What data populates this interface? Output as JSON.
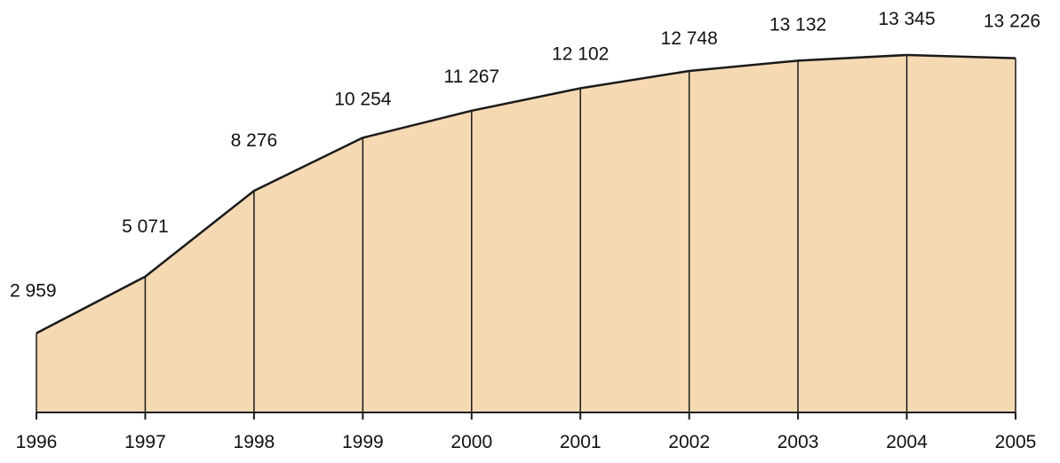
{
  "chart_data": {
    "type": "area",
    "x": [
      "1996",
      "1997",
      "1998",
      "1999",
      "2000",
      "2001",
      "2002",
      "2003",
      "2004",
      "2005"
    ],
    "values": [
      2959,
      5071,
      8276,
      10254,
      11267,
      12102,
      12748,
      13132,
      13345,
      13226
    ],
    "data_labels": [
      "2 959",
      "5 071",
      "8 276",
      "10 254",
      "11 267",
      "12 102",
      "12 748",
      "13 132",
      "13 345",
      "13 226"
    ],
    "title": "",
    "xlabel": "",
    "ylabel": "",
    "ylim": [
      0,
      13345
    ],
    "grid": false,
    "legend": "none",
    "colors": {
      "fill": "#f5d9b3",
      "line": "#1a1a1a",
      "text": "#111111"
    }
  }
}
